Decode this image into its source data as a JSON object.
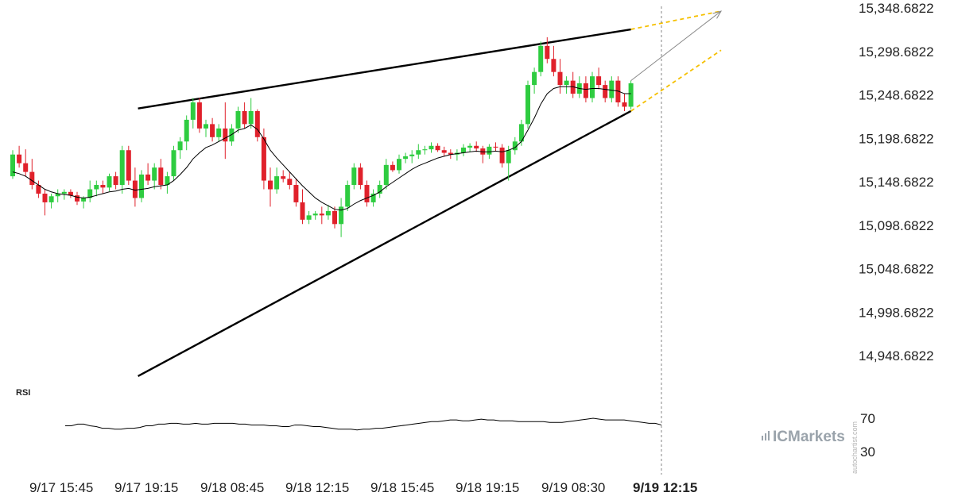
{
  "chart_data": {
    "type": "candlestick",
    "price_axis": {
      "labels": [
        "15,348.6822",
        "15,298.6822",
        "15,248.6822",
        "15,198.6822",
        "15,148.6822",
        "15,098.6822",
        "15,048.6822",
        "14,998.6822",
        "14,948.6822"
      ],
      "values": [
        15348.6822,
        15298.6822,
        15248.6822,
        15198.6822,
        15148.6822,
        15098.6822,
        15048.6822,
        14998.6822,
        14948.6822
      ]
    },
    "time_axis": {
      "labels": [
        "9/17 15:45",
        "9/17 19:15",
        "9/18 08:45",
        "9/18 12:15",
        "9/18 15:45",
        "9/18 19:15",
        "9/19 08:30",
        "9/19 12:15"
      ],
      "highlighted": "9/19 12:15"
    },
    "colors": {
      "bull": "#2ecc40",
      "bear": "#e0212b",
      "trendline": "#000000",
      "projection": "#f5c000",
      "arrow": "#888888",
      "moving_average": "#000000",
      "rsi": "#000000"
    },
    "candles": [
      [
        15155,
        15185,
        15152,
        15180
      ],
      [
        15180,
        15190,
        15165,
        15170
      ],
      [
        15170,
        15186,
        15155,
        15160
      ],
      [
        15160,
        15175,
        15140,
        15145
      ],
      [
        15145,
        15150,
        15130,
        15135
      ],
      [
        15135,
        15140,
        15110,
        15125
      ],
      [
        15125,
        15135,
        15118,
        15132
      ],
      [
        15132,
        15140,
        15125,
        15135
      ],
      [
        15135,
        15140,
        15128,
        15137
      ],
      [
        15137,
        15140,
        15130,
        15133
      ],
      [
        15133,
        15137,
        15122,
        15126
      ],
      [
        15126,
        15132,
        15118,
        15130
      ],
      [
        15130,
        15150,
        15125,
        15140
      ],
      [
        15140,
        15150,
        15132,
        15145
      ],
      [
        15145,
        15150,
        15135,
        15142
      ],
      [
        15142,
        15158,
        15138,
        15155
      ],
      [
        15155,
        15160,
        15140,
        15145
      ],
      [
        15145,
        15190,
        15135,
        15185
      ],
      [
        15185,
        15190,
        15145,
        15150
      ],
      [
        15150,
        15165,
        15120,
        15130
      ],
      [
        15130,
        15162,
        15125,
        15157
      ],
      [
        15157,
        15170,
        15145,
        15150
      ],
      [
        15150,
        15170,
        15140,
        15165
      ],
      [
        15165,
        15175,
        15140,
        15145
      ],
      [
        15145,
        15160,
        15135,
        15155
      ],
      [
        15155,
        15190,
        15150,
        15185
      ],
      [
        15185,
        15200,
        15175,
        15195
      ],
      [
        15195,
        15225,
        15185,
        15220
      ],
      [
        15220,
        15245,
        15210,
        15240
      ],
      [
        15240,
        15245,
        15205,
        15210
      ],
      [
        15210,
        15220,
        15200,
        15215
      ],
      [
        15215,
        15222,
        15195,
        15200
      ],
      [
        15200,
        15215,
        15195,
        15210
      ],
      [
        15210,
        15240,
        15175,
        15195
      ],
      [
        15195,
        15215,
        15190,
        15210
      ],
      [
        15210,
        15235,
        15205,
        15230
      ],
      [
        15230,
        15240,
        15210,
        15215
      ],
      [
        15215,
        15245,
        15210,
        15230
      ],
      [
        15230,
        15232,
        15195,
        15200
      ],
      [
        15200,
        15210,
        15140,
        15150
      ],
      [
        15150,
        15165,
        15120,
        15140
      ],
      [
        15140,
        15165,
        15135,
        15155
      ],
      [
        15155,
        15162,
        15148,
        15152
      ],
      [
        15152,
        15160,
        15140,
        15145
      ],
      [
        15145,
        15152,
        15120,
        15125
      ],
      [
        15125,
        15140,
        15100,
        15105
      ],
      [
        15105,
        15115,
        15100,
        15110
      ],
      [
        15110,
        15115,
        15105,
        15112
      ],
      [
        15112,
        15120,
        15100,
        15110
      ],
      [
        15110,
        15122,
        15105,
        15115
      ],
      [
        15115,
        15120,
        15095,
        15100
      ],
      [
        15100,
        15130,
        15085,
        15120
      ],
      [
        15120,
        15150,
        15115,
        15145
      ],
      [
        15145,
        15170,
        15140,
        15165
      ],
      [
        15165,
        15170,
        15140,
        15145
      ],
      [
        15145,
        15150,
        15120,
        15125
      ],
      [
        15125,
        15140,
        15120,
        15135
      ],
      [
        15135,
        15150,
        15130,
        15145
      ],
      [
        15145,
        15175,
        15140,
        15168
      ],
      [
        15168,
        15172,
        15160,
        15162
      ],
      [
        15162,
        15180,
        15158,
        15175
      ],
      [
        15175,
        15182,
        15170,
        15178
      ],
      [
        15178,
        15185,
        15170,
        15180
      ],
      [
        15180,
        15192,
        15175,
        15185
      ],
      [
        15185,
        15190,
        15180,
        15186
      ],
      [
        15186,
        15194,
        15182,
        15190
      ],
      [
        15190,
        15193,
        15183,
        15185
      ],
      [
        15185,
        15189,
        15178,
        15182
      ],
      [
        15182,
        15186,
        15175,
        15180
      ],
      [
        15180,
        15186,
        15173,
        15182
      ],
      [
        15182,
        15192,
        15178,
        15188
      ],
      [
        15188,
        15193,
        15183,
        15190
      ],
      [
        15190,
        15195,
        15183,
        15187
      ],
      [
        15187,
        15190,
        15170,
        15180
      ],
      [
        15180,
        15192,
        15175,
        15189
      ],
      [
        15189,
        15194,
        15184,
        15188
      ],
      [
        15188,
        15192,
        15165,
        15170
      ],
      [
        15170,
        15190,
        15150,
        15185
      ],
      [
        15185,
        15200,
        15180,
        15195
      ],
      [
        15195,
        15220,
        15190,
        15215
      ],
      [
        15215,
        15265,
        15210,
        15260
      ],
      [
        15260,
        15280,
        15250,
        15275
      ],
      [
        15275,
        15310,
        15270,
        15305
      ],
      [
        15305,
        15315,
        15285,
        15290
      ],
      [
        15290,
        15305,
        15270,
        15275
      ],
      [
        15275,
        15290,
        15250,
        15260
      ],
      [
        15260,
        15270,
        15250,
        15265
      ],
      [
        15265,
        15275,
        15245,
        15250
      ],
      [
        15250,
        15270,
        15245,
        15262
      ],
      [
        15262,
        15270,
        15240,
        15245
      ],
      [
        15245,
        15275,
        15240,
        15270
      ],
      [
        15270,
        15280,
        15255,
        15260
      ],
      [
        15260,
        15265,
        15240,
        15245
      ],
      [
        15245,
        15270,
        15240,
        15265
      ],
      [
        15265,
        15270,
        15235,
        15240
      ],
      [
        15240,
        15250,
        15230,
        15235
      ],
      [
        15235,
        15265,
        15232,
        15262
      ]
    ],
    "moving_average": [
      15160,
      15158,
      15155,
      15150,
      15145,
      15140,
      15137,
      15135,
      15134,
      15133,
      15131,
      15130,
      15131,
      15133,
      15135,
      15137,
      15138,
      15140,
      15141,
      15139,
      15140,
      15141,
      15143,
      15144,
      15145,
      15150,
      15157,
      15165,
      15175,
      15182,
      15188,
      15191,
      15195,
      15199,
      15203,
      15208,
      15210,
      15214,
      15209,
      15198,
      15185,
      15176,
      15168,
      15160,
      15152,
      15144,
      15137,
      15130,
      15125,
      15121,
      15117,
      15116,
      15118,
      15123,
      15127,
      15130,
      15133,
      15137,
      15143,
      15148,
      15153,
      15158,
      15163,
      15167,
      15170,
      15173,
      15176,
      15178,
      15180,
      15181,
      15182,
      15183,
      15184,
      15183,
      15183,
      15184,
      15183,
      15185,
      15188,
      15195,
      15208,
      15222,
      15238,
      15250,
      15256,
      15258,
      15258,
      15258,
      15256,
      15255,
      15256,
      15256,
      15255,
      15254,
      15253,
      15250,
      15250
    ],
    "trendlines": [
      {
        "name": "upper",
        "points": [
          {
            "i": 16,
            "v": 15233
          },
          {
            "i": 96,
            "v": 15324
          }
        ]
      },
      {
        "name": "lower",
        "points": [
          {
            "i": 16,
            "v": 14925
          },
          {
            "i": 96,
            "v": 15230
          }
        ]
      }
    ],
    "projections": [
      {
        "name": "upper",
        "to": {
          "i": 110,
          "v": 15345
        }
      },
      {
        "name": "lower",
        "to": {
          "i": 110,
          "v": 15300
        }
      },
      {
        "name": "arrow",
        "from": {
          "i": 96,
          "v": 15265
        },
        "to": {
          "i": 110,
          "v": 15345
        }
      }
    ],
    "rsi": {
      "label": "RSI",
      "levels": [
        "70",
        "30"
      ],
      "values": [
        60,
        60,
        62,
        62,
        60,
        59,
        57,
        57,
        56,
        56,
        57,
        57,
        58,
        60,
        60,
        62,
        62,
        63,
        63,
        62,
        62,
        63,
        62,
        62,
        63,
        63,
        63,
        63,
        62,
        62,
        61,
        61,
        61,
        60,
        60,
        59,
        59,
        61,
        61,
        60,
        59,
        59,
        58,
        57,
        56,
        56,
        56,
        55,
        56,
        56,
        57,
        57,
        58,
        59,
        60,
        61,
        62,
        63,
        64,
        65,
        65,
        66,
        67,
        67,
        66,
        66,
        67,
        68,
        67,
        67,
        66,
        66,
        66,
        65,
        65,
        65,
        65,
        65,
        64,
        64,
        64,
        65,
        66,
        67,
        68,
        69,
        68,
        67,
        67,
        67,
        67,
        66,
        65,
        64,
        63,
        63,
        61
      ],
      "rsi_min": 20,
      "rsi_max": 80
    }
  },
  "branding": {
    "logo": "ICMarkets",
    "watermark": "autochartist.com"
  }
}
